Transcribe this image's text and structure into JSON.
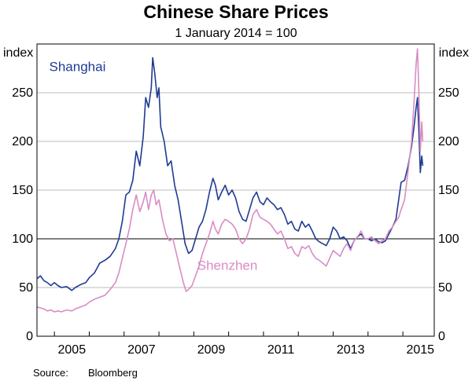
{
  "chart_data": {
    "type": "line",
    "title": "Chinese Share Prices",
    "subtitle": "1 January 2014 = 100",
    "y_unit_left": "index",
    "y_unit_right": "index",
    "ylim": [
      0,
      300
    ],
    "yticks": [
      0,
      50,
      100,
      150,
      200,
      250
    ],
    "xlim": [
      2004.5,
      2015.9
    ],
    "xticks": [
      {
        "value": 2005,
        "label": "2005"
      },
      {
        "value": 2007,
        "label": "2007"
      },
      {
        "value": 2009,
        "label": "2009"
      },
      {
        "value": 2011,
        "label": "2011"
      },
      {
        "value": 2013,
        "label": "2013"
      },
      {
        "value": 2015,
        "label": "2015"
      }
    ],
    "reference_line": 100,
    "grid": true,
    "series": [
      {
        "name": "Shanghai",
        "color": "#1f3b93",
        "points": [
          [
            2004.5,
            59
          ],
          [
            2004.6,
            62
          ],
          [
            2004.7,
            57
          ],
          [
            2004.8,
            55
          ],
          [
            2004.9,
            52
          ],
          [
            2005.0,
            55
          ],
          [
            2005.1,
            52
          ],
          [
            2005.2,
            50
          ],
          [
            2005.35,
            51
          ],
          [
            2005.5,
            47
          ],
          [
            2005.6,
            50
          ],
          [
            2005.75,
            53
          ],
          [
            2005.9,
            55
          ],
          [
            2006.0,
            60
          ],
          [
            2006.15,
            65
          ],
          [
            2006.3,
            75
          ],
          [
            2006.45,
            78
          ],
          [
            2006.6,
            82
          ],
          [
            2006.75,
            90
          ],
          [
            2006.85,
            100
          ],
          [
            2006.95,
            118
          ],
          [
            2007.05,
            145
          ],
          [
            2007.15,
            148
          ],
          [
            2007.25,
            160
          ],
          [
            2007.35,
            190
          ],
          [
            2007.45,
            175
          ],
          [
            2007.55,
            205
          ],
          [
            2007.62,
            245
          ],
          [
            2007.7,
            235
          ],
          [
            2007.78,
            255
          ],
          [
            2007.82,
            286
          ],
          [
            2007.88,
            270
          ],
          [
            2007.95,
            245
          ],
          [
            2008.0,
            255
          ],
          [
            2008.05,
            215
          ],
          [
            2008.15,
            200
          ],
          [
            2008.25,
            175
          ],
          [
            2008.35,
            180
          ],
          [
            2008.45,
            155
          ],
          [
            2008.55,
            140
          ],
          [
            2008.65,
            118
          ],
          [
            2008.75,
            95
          ],
          [
            2008.85,
            85
          ],
          [
            2008.95,
            88
          ],
          [
            2009.05,
            100
          ],
          [
            2009.15,
            112
          ],
          [
            2009.25,
            118
          ],
          [
            2009.35,
            130
          ],
          [
            2009.45,
            148
          ],
          [
            2009.55,
            162
          ],
          [
            2009.62,
            155
          ],
          [
            2009.7,
            140
          ],
          [
            2009.8,
            148
          ],
          [
            2009.9,
            155
          ],
          [
            2010.0,
            145
          ],
          [
            2010.1,
            150
          ],
          [
            2010.2,
            142
          ],
          [
            2010.3,
            128
          ],
          [
            2010.4,
            120
          ],
          [
            2010.5,
            118
          ],
          [
            2010.6,
            130
          ],
          [
            2010.7,
            142
          ],
          [
            2010.8,
            148
          ],
          [
            2010.9,
            138
          ],
          [
            2011.0,
            135
          ],
          [
            2011.1,
            142
          ],
          [
            2011.2,
            138
          ],
          [
            2011.3,
            135
          ],
          [
            2011.4,
            130
          ],
          [
            2011.5,
            132
          ],
          [
            2011.6,
            125
          ],
          [
            2011.7,
            115
          ],
          [
            2011.8,
            118
          ],
          [
            2011.9,
            110
          ],
          [
            2012.0,
            108
          ],
          [
            2012.1,
            118
          ],
          [
            2012.2,
            112
          ],
          [
            2012.3,
            115
          ],
          [
            2012.4,
            108
          ],
          [
            2012.5,
            100
          ],
          [
            2012.6,
            97
          ],
          [
            2012.7,
            95
          ],
          [
            2012.8,
            93
          ],
          [
            2012.9,
            100
          ],
          [
            2013.0,
            112
          ],
          [
            2013.1,
            108
          ],
          [
            2013.2,
            100
          ],
          [
            2013.3,
            102
          ],
          [
            2013.4,
            98
          ],
          [
            2013.5,
            90
          ],
          [
            2013.6,
            98
          ],
          [
            2013.7,
            102
          ],
          [
            2013.8,
            105
          ],
          [
            2013.9,
            100
          ],
          [
            2014.0,
            100
          ],
          [
            2014.1,
            98
          ],
          [
            2014.2,
            100
          ],
          [
            2014.3,
            97
          ],
          [
            2014.4,
            96
          ],
          [
            2014.5,
            98
          ],
          [
            2014.6,
            105
          ],
          [
            2014.7,
            112
          ],
          [
            2014.8,
            120
          ],
          [
            2014.88,
            140
          ],
          [
            2014.95,
            158
          ],
          [
            2015.05,
            160
          ],
          [
            2015.15,
            175
          ],
          [
            2015.25,
            195
          ],
          [
            2015.32,
            215
          ],
          [
            2015.38,
            235
          ],
          [
            2015.42,
            245
          ],
          [
            2015.46,
            210
          ],
          [
            2015.5,
            168
          ],
          [
            2015.54,
            185
          ],
          [
            2015.57,
            175
          ]
        ]
      },
      {
        "name": "Shenzhen",
        "color": "#d98cc4",
        "points": [
          [
            2004.5,
            30
          ],
          [
            2004.6,
            29
          ],
          [
            2004.7,
            28
          ],
          [
            2004.8,
            26
          ],
          [
            2004.9,
            27
          ],
          [
            2005.0,
            25
          ],
          [
            2005.1,
            26
          ],
          [
            2005.2,
            25
          ],
          [
            2005.35,
            27
          ],
          [
            2005.5,
            26
          ],
          [
            2005.6,
            28
          ],
          [
            2005.75,
            30
          ],
          [
            2005.9,
            32
          ],
          [
            2006.0,
            35
          ],
          [
            2006.15,
            38
          ],
          [
            2006.3,
            40
          ],
          [
            2006.45,
            42
          ],
          [
            2006.6,
            48
          ],
          [
            2006.75,
            55
          ],
          [
            2006.85,
            65
          ],
          [
            2006.95,
            80
          ],
          [
            2007.05,
            95
          ],
          [
            2007.15,
            110
          ],
          [
            2007.25,
            130
          ],
          [
            2007.35,
            145
          ],
          [
            2007.45,
            128
          ],
          [
            2007.55,
            138
          ],
          [
            2007.62,
            148
          ],
          [
            2007.7,
            130
          ],
          [
            2007.78,
            145
          ],
          [
            2007.85,
            150
          ],
          [
            2007.92,
            135
          ],
          [
            2008.0,
            140
          ],
          [
            2008.1,
            120
          ],
          [
            2008.2,
            105
          ],
          [
            2008.3,
            98
          ],
          [
            2008.4,
            100
          ],
          [
            2008.5,
            85
          ],
          [
            2008.6,
            70
          ],
          [
            2008.7,
            55
          ],
          [
            2008.78,
            46
          ],
          [
            2008.85,
            48
          ],
          [
            2008.95,
            52
          ],
          [
            2009.05,
            62
          ],
          [
            2009.15,
            72
          ],
          [
            2009.25,
            85
          ],
          [
            2009.35,
            95
          ],
          [
            2009.45,
            105
          ],
          [
            2009.55,
            118
          ],
          [
            2009.62,
            110
          ],
          [
            2009.7,
            105
          ],
          [
            2009.8,
            115
          ],
          [
            2009.9,
            120
          ],
          [
            2010.0,
            118
          ],
          [
            2010.1,
            115
          ],
          [
            2010.2,
            110
          ],
          [
            2010.3,
            100
          ],
          [
            2010.4,
            95
          ],
          [
            2010.5,
            100
          ],
          [
            2010.6,
            110
          ],
          [
            2010.7,
            125
          ],
          [
            2010.8,
            130
          ],
          [
            2010.9,
            122
          ],
          [
            2011.0,
            120
          ],
          [
            2011.1,
            118
          ],
          [
            2011.2,
            115
          ],
          [
            2011.3,
            110
          ],
          [
            2011.4,
            105
          ],
          [
            2011.5,
            108
          ],
          [
            2011.6,
            100
          ],
          [
            2011.7,
            90
          ],
          [
            2011.8,
            92
          ],
          [
            2011.9,
            85
          ],
          [
            2012.0,
            82
          ],
          [
            2012.1,
            92
          ],
          [
            2012.2,
            90
          ],
          [
            2012.3,
            93
          ],
          [
            2012.4,
            85
          ],
          [
            2012.5,
            80
          ],
          [
            2012.6,
            78
          ],
          [
            2012.7,
            75
          ],
          [
            2012.8,
            72
          ],
          [
            2012.9,
            80
          ],
          [
            2013.0,
            88
          ],
          [
            2013.1,
            85
          ],
          [
            2013.2,
            82
          ],
          [
            2013.3,
            90
          ],
          [
            2013.4,
            95
          ],
          [
            2013.5,
            88
          ],
          [
            2013.6,
            98
          ],
          [
            2013.7,
            102
          ],
          [
            2013.8,
            108
          ],
          [
            2013.9,
            100
          ],
          [
            2014.0,
            100
          ],
          [
            2014.1,
            102
          ],
          [
            2014.2,
            98
          ],
          [
            2014.3,
            95
          ],
          [
            2014.4,
            98
          ],
          [
            2014.5,
            100
          ],
          [
            2014.6,
            108
          ],
          [
            2014.7,
            112
          ],
          [
            2014.8,
            118
          ],
          [
            2014.88,
            122
          ],
          [
            2014.95,
            130
          ],
          [
            2015.05,
            140
          ],
          [
            2015.15,
            170
          ],
          [
            2015.25,
            200
          ],
          [
            2015.32,
            240
          ],
          [
            2015.38,
            280
          ],
          [
            2015.42,
            295
          ],
          [
            2015.46,
            250
          ],
          [
            2015.5,
            190
          ],
          [
            2015.54,
            220
          ],
          [
            2015.57,
            200
          ]
        ]
      }
    ],
    "series_labels": [
      {
        "series": "Shanghai",
        "text": "Shanghai",
        "x": 2004.85,
        "y": 272
      },
      {
        "series": "Shenzhen",
        "text": "Shenzhen",
        "x": 2009.1,
        "y": 68
      }
    ]
  },
  "source_label": "Source:",
  "source_value": "Bloomberg"
}
